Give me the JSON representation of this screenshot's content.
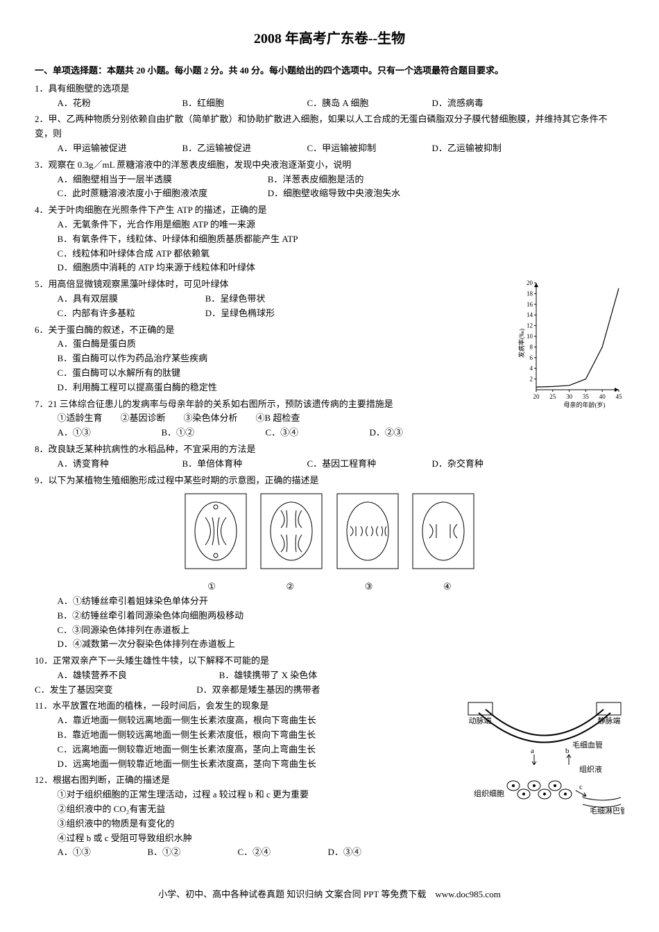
{
  "title": "2008 年高考广东卷--生物",
  "section1_header": "一、单项选择题：本题共 20 小题。每小题 2 分。共 40 分。每小题给出的四个选项中。只有一个选项最符合题目要求。",
  "q1": {
    "text": "1．具有细胞壁的选项是",
    "A": "A．花粉",
    "B": "B．红细胞",
    "C": "C．胰岛 A 细胞",
    "D": "D．流感病毒"
  },
  "q2": {
    "text": "2．甲、乙两种物质分别依赖自由扩散（简单扩散）和协助扩散进入细胞，如果以人工合成的无蛋白磷脂双分子膜代替细胞膜，并维持其它条件不变，则",
    "A": "A．甲运输被促进",
    "B": "B．乙运输被促进",
    "C": "C．甲运输被抑制",
    "D": "D．乙运输被抑制"
  },
  "q3": {
    "text": "3．观察在 0.3g／mL 蔗糖溶液中的洋葱表皮细胞，发现中央液泡逐渐变小，说明",
    "A": "A．细胞壁相当于一层半透膜",
    "B": "B．洋葱表皮细胞是活的",
    "C": "C．此时蔗糖溶液浓度小于细胞液浓度",
    "D": "D．细胞壁收缩导致中央液泡失水"
  },
  "q4": {
    "text": "4．关于叶肉细胞在光照条件下产生 ATP 的描述，正确的是",
    "A": "A．无氧条件下，光合作用是细胞 ATP 的唯一来源",
    "B": "B．有氧条件下，线粒体、叶绿体和细胞质基质都能产生 ATP",
    "C": "C．线粒体和叶绿体合成 ATP 都依赖氧",
    "D": "D．细胞质中消耗的 ATP 均来源于线粒体和叶绿体"
  },
  "q5": {
    "text": "5．用高倍显微镜观察黑藻叶绿体时，可见叶绿体",
    "A": "A．具有双层膜",
    "B": "B．呈绿色带状",
    "C": "C．内部有许多基粒",
    "D": "D．呈绿色椭球形"
  },
  "q6": {
    "text": "6．关于蛋白酶的叙述，不正确的是",
    "A": "A．蛋白酶是蛋白质",
    "B": "B．蛋白酶可以作为药品治疗某些疾病",
    "C": "C．蛋白酶可以水解所有的肽键",
    "D": "D．利用酶工程可以提高蛋白酶的稳定性"
  },
  "q7": {
    "text": "7．21 三体综合征患儿的发病率与母亲年龄的关系如右图所示，预防该遗传病的主要措施是",
    "subs": "①适龄生育　　②基因诊断　　③染色体分析　　④B 超检查",
    "A": "A．①③",
    "B": "B．①②",
    "C": "C．③④",
    "D": "D．②③"
  },
  "q8": {
    "text": "8．改良缺乏某种抗病性的水稻品种，不宜采用的方法是",
    "A": "A．诱变育种",
    "B": "B．单倍体育种",
    "C": "C．基因工程育种",
    "D": "D．杂交育种"
  },
  "q9": {
    "text": "9．以下为某植物生殖细胞形成过程中某些时期的示意图，正确的描述是",
    "A": "A．①纺锤丝牵引着姐妹染色单体分开",
    "B": "B．②纺锤丝牵引着同源染色体向细胞两极移动",
    "C": "C．③同源染色体排列在赤道板上",
    "D": "D．④减数第一次分裂染色体排列在赤道板上",
    "labels": {
      "l1": "①",
      "l2": "②",
      "l3": "③",
      "l4": "④"
    }
  },
  "q10": {
    "text": "10．正常双亲产下一头矮生雄性牛犊，以下解释不可能的是",
    "A": "A．雄犊营养不良",
    "B": "B．雄犊携带了 X 染色体",
    "C": "C．发生了基因突变",
    "D": "D．双亲都是矮生基因的携带者"
  },
  "q11": {
    "text": "11．水平放置在地面的植株，一段时间后，会发生的现象是",
    "A": "A．靠近地面一侧较远离地面一侧生长素浓度高，根向下弯曲生长",
    "B": "B．靠近地面一侧较远离地面一侧生长素浓度低，根向下弯曲生长",
    "C": "C．远离地面一侧较靠近地面一侧生长素浓度高，茎向上弯曲生长",
    "D": "D．远离地面一侧较靠近地面一侧生长素浓度高，茎向下弯曲生长"
  },
  "q12": {
    "text": "12．根据右图判断，正确的描述是",
    "s1": "①对于组织细胞的正常生理活动，过程 a 较过程 b 和 c 更为重要",
    "s2": "②组织液中的 CO₂有害无益",
    "s3": "③组织液中的物质是有变化的",
    "s4": "④过程 b 或 c 受阻可导致组织水肿",
    "A": "A．①③",
    "B": "B．①②",
    "C": "C．②④",
    "D": "D．③④"
  },
  "chart": {
    "type": "line",
    "x_label": "母亲的年龄(岁)",
    "y_label": "发病率(‰)",
    "x_ticks": [
      20,
      25,
      30,
      35,
      40,
      45
    ],
    "y_ticks": [
      2,
      4,
      6,
      8,
      10,
      12,
      14,
      16,
      18,
      20
    ],
    "points": [
      [
        20,
        0.5
      ],
      [
        25,
        0.6
      ],
      [
        30,
        0.8
      ],
      [
        35,
        2
      ],
      [
        40,
        8
      ],
      [
        45,
        19
      ]
    ],
    "line_color": "#000000",
    "bg": "#ffffff",
    "axis_color": "#000000",
    "fontsize": 9
  },
  "diagram": {
    "labels": {
      "artery": "动脉端",
      "vein": "静脉端",
      "cap": "毛细血管",
      "fluid": "组织液",
      "cells": "组织细胞",
      "lymph": "毛细淋巴管",
      "a": "a",
      "b": "b",
      "c": "c"
    },
    "colors": {
      "line": "#000000",
      "label": "#000000",
      "bg": "#ffffff"
    }
  },
  "footer": "小学、初中、高中各种试卷真题 知识归纳 文案合同 PPT 等免费下载　www.doc985.com"
}
